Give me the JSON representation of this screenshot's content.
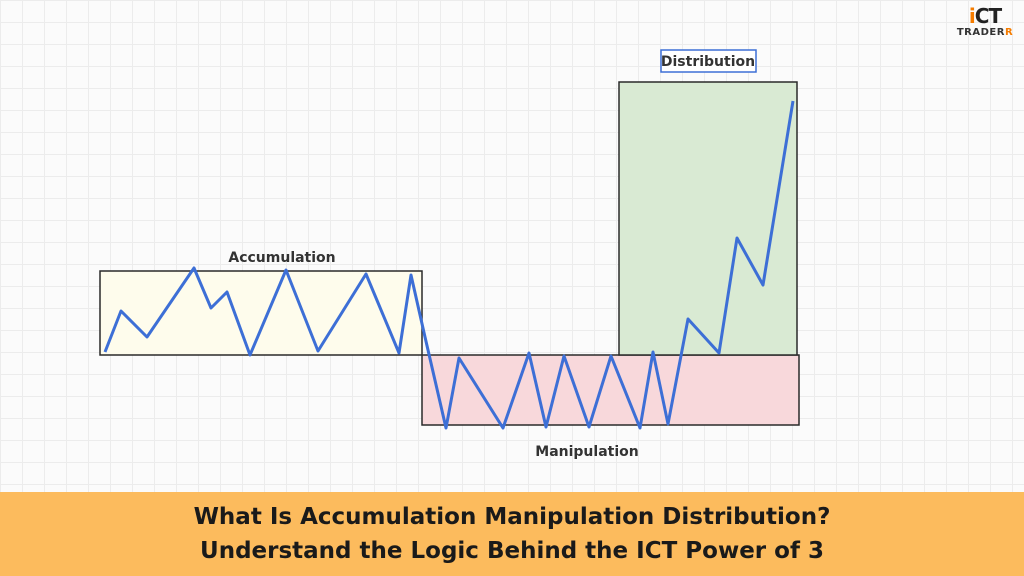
{
  "diagram": {
    "zones": {
      "accumulation": {
        "label": "Accumulation",
        "fill": "#fefcec",
        "stroke": "#2a2a2a"
      },
      "manipulation": {
        "label": "Manipulation",
        "fill": "#f8d8db",
        "stroke": "#2a2a2a"
      },
      "distribution": {
        "label": "Distribution",
        "fill": "#d9ead3",
        "stroke": "#2a2a2a",
        "label_border": "#3d6fd6"
      }
    },
    "price_line_color": "#3d6fd6"
  },
  "logo": {
    "mark_prefix": "i",
    "mark_suffix": "CT",
    "text_main": "TRADER",
    "text_accent": "R",
    "accent_color": "#f57c00"
  },
  "banner": {
    "line1": "What Is Accumulation Manipulation Distribution?",
    "line2": "Understand the Logic Behind the ICT Power of 3",
    "background": "#fcbb5d"
  }
}
